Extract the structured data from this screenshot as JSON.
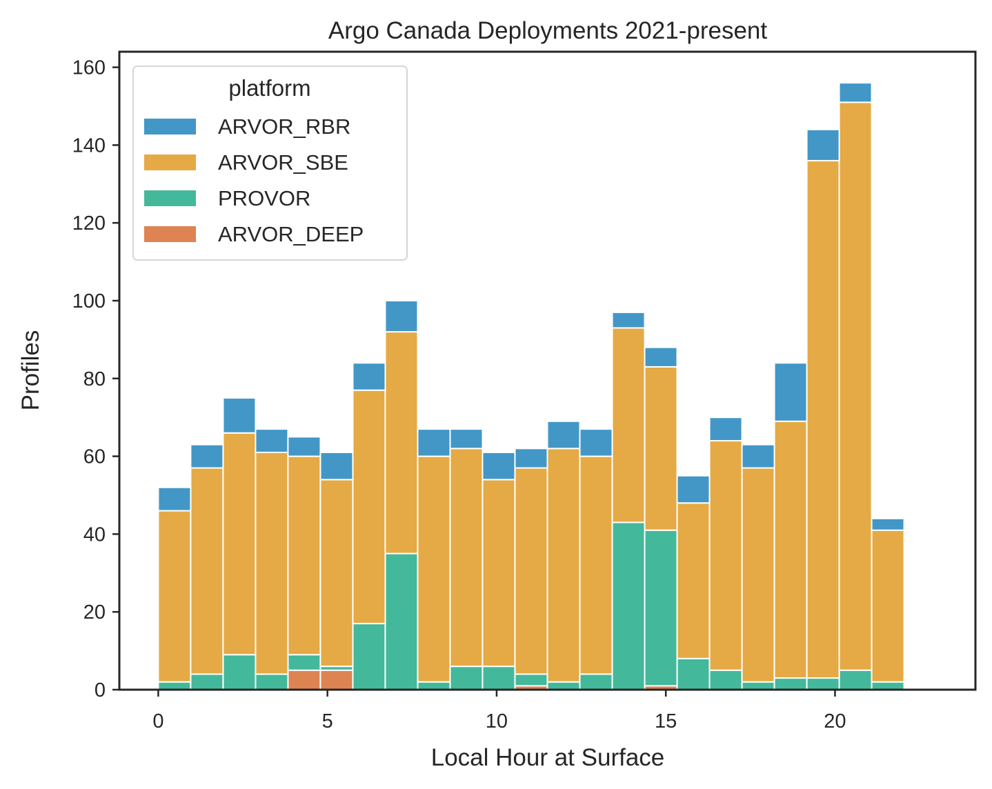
{
  "chart_data": {
    "type": "bar",
    "stacked": true,
    "title": "Argo Canada Deployments 2021-present",
    "xlabel": "Local Hour at Surface",
    "ylabel": "Profiles",
    "xlim": [
      -1.15,
      24.15
    ],
    "ylim": [
      0,
      164
    ],
    "x_ticks": [
      0,
      5,
      10,
      15,
      20
    ],
    "y_ticks": [
      0,
      20,
      40,
      60,
      80,
      100,
      120,
      140,
      160
    ],
    "bin_width": 0.958,
    "bin_starts": [
      0,
      0.958,
      1.917,
      2.875,
      3.833,
      4.792,
      5.75,
      6.708,
      7.667,
      8.625,
      9.583,
      10.542,
      11.5,
      12.458,
      13.417,
      14.375,
      15.333,
      16.292,
      17.25,
      18.208,
      19.167,
      20.125,
      21.083,
      22.042
    ],
    "legend": {
      "title": "platform",
      "position": "upper left"
    },
    "grid": false,
    "series": [
      {
        "name": "ARVOR_DEEP",
        "color": "#dd8452",
        "values": [
          0,
          0,
          0,
          0,
          5,
          5,
          0,
          0,
          0,
          0,
          0,
          1,
          0,
          0,
          0,
          1,
          0,
          0,
          0,
          0,
          0,
          0,
          0,
          0
        ]
      },
      {
        "name": "PROVOR",
        "color": "#44b89b",
        "values": [
          2,
          4,
          9,
          4,
          4,
          1,
          17,
          35,
          2,
          6,
          6,
          3,
          2,
          4,
          43,
          40,
          8,
          5,
          2,
          3,
          3,
          5,
          2,
          0
        ]
      },
      {
        "name": "ARVOR_SBE",
        "color": "#e5aa45",
        "values": [
          44,
          53,
          57,
          57,
          51,
          48,
          60,
          57,
          58,
          56,
          48,
          53,
          60,
          56,
          50,
          42,
          40,
          59,
          55,
          66,
          133,
          146,
          39,
          0
        ]
      },
      {
        "name": "ARVOR_RBR",
        "color": "#4297c7",
        "values": [
          6,
          6,
          9,
          6,
          5,
          7,
          7,
          8,
          7,
          5,
          7,
          5,
          7,
          7,
          4,
          5,
          7,
          6,
          6,
          15,
          8,
          5,
          3,
          0
        ]
      }
    ],
    "legend_order": [
      "ARVOR_RBR",
      "ARVOR_SBE",
      "PROVOR",
      "ARVOR_DEEP"
    ]
  }
}
